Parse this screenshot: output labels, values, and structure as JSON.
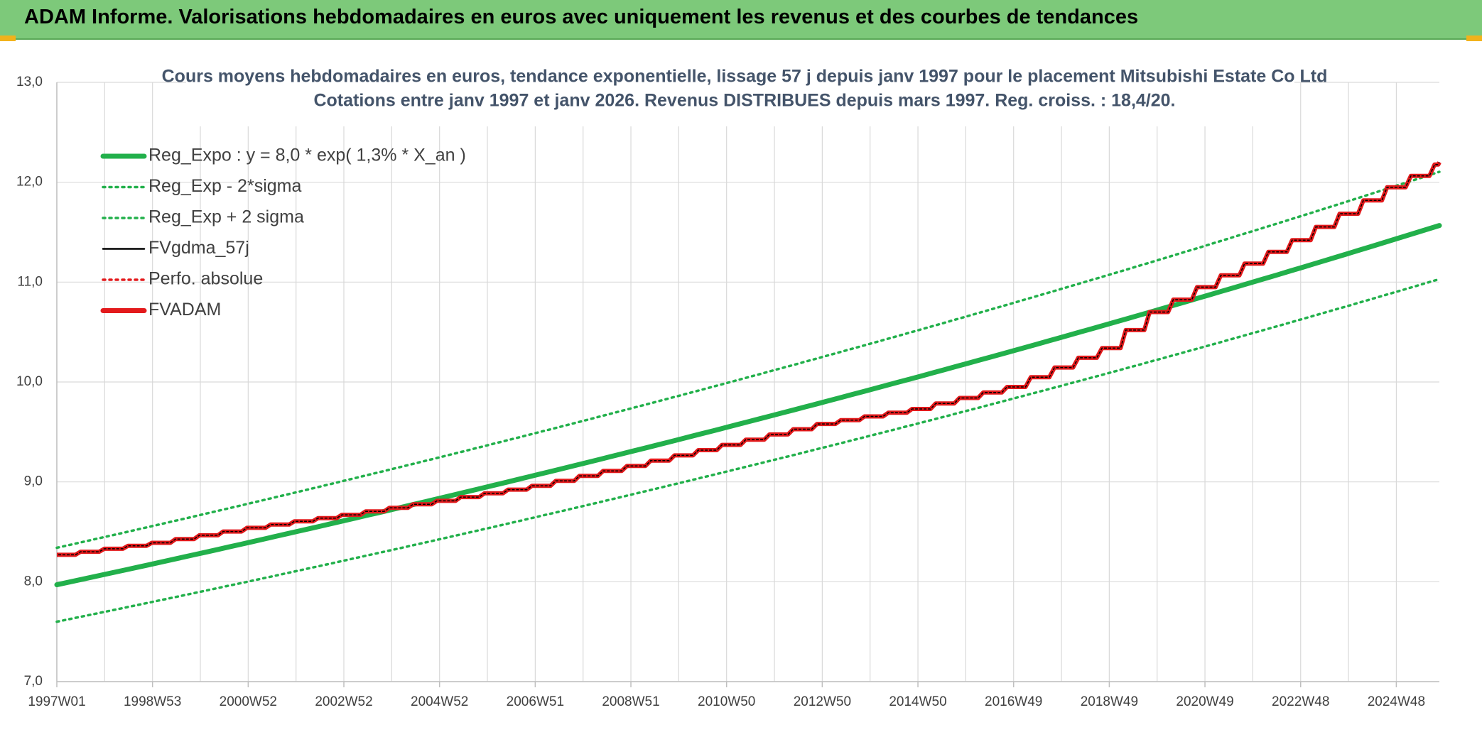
{
  "banner": {
    "title": "ADAM Informe. Valorisations hebdomadaires en euros avec uniquement les revenus et des courbes de tendances"
  },
  "chart_data": {
    "type": "line",
    "title_line1": "Cours moyens hebdomadaires en euros, tendance exponentielle, lissage 57 j depuis janv 1997 pour le placement Mitsubishi Estate Co Ltd",
    "title_line2": "Cotations entre janv 1997 et janv 2026. Revenus DISTRIBUES depuis mars 1997. Reg. croiss. : 18,4/20.",
    "xlabel": "",
    "ylabel": "",
    "ylim": [
      7.0,
      13.0
    ],
    "yticks": [
      "7,0",
      "8,0",
      "9,0",
      "10,0",
      "11,0",
      "12,0",
      "13,0"
    ],
    "xticks": [
      "1997W01",
      "1998W53",
      "2000W52",
      "2002W52",
      "2004W52",
      "2006W51",
      "2008W51",
      "2010W50",
      "2012W50",
      "2014W50",
      "2016W49",
      "2018W49",
      "2020W49",
      "2022W48",
      "2024W48"
    ],
    "x_range_years": [
      1997.0,
      2026.1
    ],
    "grid": true,
    "legend_position": "top-left",
    "series": [
      {
        "name": "Reg_Expo : y = 8,0 * exp( 1,3% *  X_an )",
        "color": "#22b04b",
        "style": "solid-thick",
        "model": "exponential",
        "a": 7.97,
        "rate": 0.0128
      },
      {
        "name": "Reg_Exp - 2*sigma",
        "color": "#22b04b",
        "style": "dotted",
        "model": "exponential",
        "a": 7.6,
        "rate": 0.0128
      },
      {
        "name": "Reg_Exp + 2 sigma",
        "color": "#22b04b",
        "style": "dotted",
        "model": "exponential",
        "a": 8.34,
        "rate": 0.0128
      },
      {
        "name": "FVgdma_57j",
        "color": "#000000",
        "style": "solid"
      },
      {
        "name": "Perfo. absolue",
        "color": "#e31a1c",
        "style": "dotted"
      },
      {
        "name": "FVADAM",
        "color": "#e31a1c",
        "style": "solid-thick",
        "x": [
          1997.0,
          1999.0,
          2001.0,
          2003.0,
          2005.0,
          2007.0,
          2009.0,
          2011.0,
          2013.0,
          2015.0,
          2017.0,
          2019.0,
          2020.0,
          2021.0,
          2023.0,
          2025.0,
          2026.1
        ],
        "values": [
          8.27,
          8.39,
          8.54,
          8.67,
          8.81,
          8.96,
          9.16,
          9.37,
          9.58,
          9.73,
          9.95,
          10.34,
          10.7,
          10.95,
          11.42,
          11.95,
          12.2
        ]
      }
    ]
  }
}
